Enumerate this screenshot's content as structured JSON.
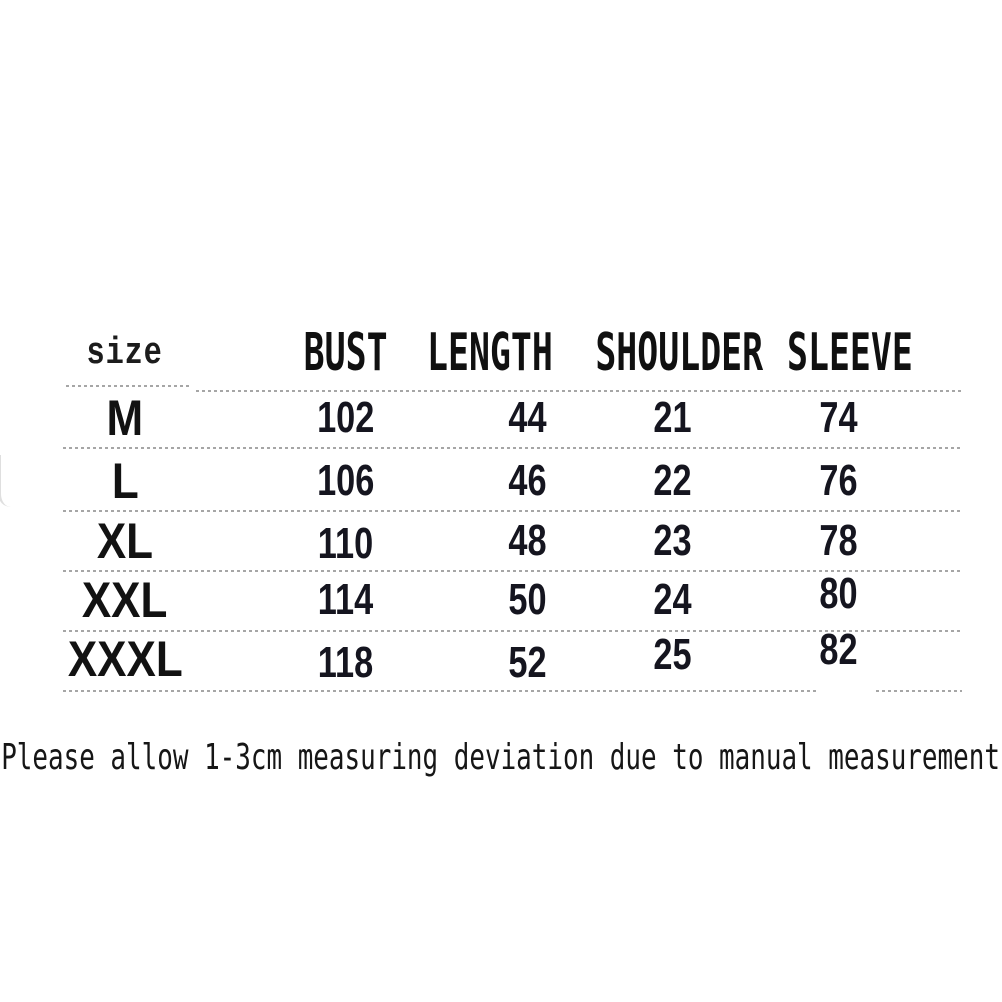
{
  "chart_data": {
    "type": "table",
    "title": "",
    "columns": [
      "size",
      "BUST",
      "LENGTH",
      "SHOULDER",
      "SLEEVE"
    ],
    "rows": [
      [
        "M",
        "102",
        "44",
        "21",
        "74"
      ],
      [
        "L",
        "106",
        "46",
        "22",
        "76"
      ],
      [
        "XL",
        "110",
        "48",
        "23",
        "78"
      ],
      [
        "XXL",
        "114",
        "50",
        "24",
        "80"
      ],
      [
        "XXXL",
        "118",
        "52",
        "25",
        "82"
      ]
    ],
    "units": "cm",
    "layout": "dashed row separators, white background, no vertical rules"
  },
  "note": "Please allow 1-3cm measuring deviation due to manual measurement",
  "colors": {
    "background": "#ffffff",
    "header_text": "#101010",
    "value_text": "#15151f",
    "divider": "#a6a6a6"
  }
}
